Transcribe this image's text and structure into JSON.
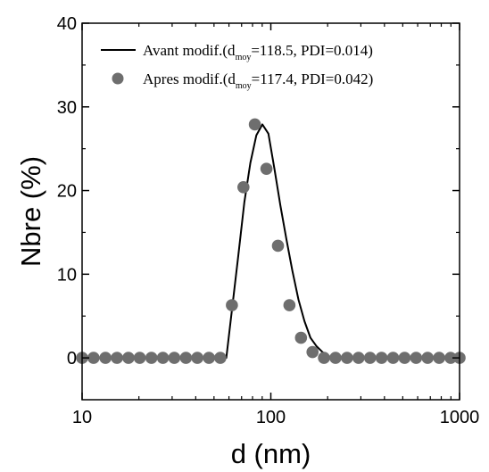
{
  "chart_data": {
    "type": "line",
    "xlabel": "d (nm)",
    "ylabel": "Nbre (%)",
    "xscale": "log",
    "xlim": [
      10,
      1000
    ],
    "ylim": [
      -5,
      40
    ],
    "xticks": [
      10,
      100,
      1000
    ],
    "xtick_labels": [
      "10",
      "100",
      "1000"
    ],
    "yticks": [
      0,
      10,
      20,
      30,
      40
    ],
    "ytick_labels": [
      "0",
      "10",
      "20",
      "30",
      "40"
    ],
    "legend_position": "top-right",
    "series": [
      {
        "name": "Avant modif.(d_moy=118.5, PDI=0.014)",
        "legend_main": "Avant modif.(d",
        "legend_sub": "moy",
        "legend_rest": "=118.5, PDI=0.014)",
        "style": "line",
        "color": "#000000",
        "x": [
          10.0,
          10.8,
          11.6,
          12.5,
          13.4,
          14.4,
          15.5,
          16.7,
          18.0,
          19.4,
          20.8,
          22.4,
          24.1,
          25.9,
          27.9,
          30.0,
          32.3,
          34.8,
          37.4,
          40.3,
          43.3,
          46.6,
          50.2,
          54.0,
          58.1,
          62.5,
          67.3,
          72.4,
          77.9,
          83.8,
          90.2,
          97.1,
          104.5,
          112.4,
          120.9,
          130.1,
          140.0,
          150.7,
          162.2,
          174.5,
          187.8,
          202.1,
          217.5,
          234.0,
          251.9,
          271.0,
          291.6,
          313.8,
          337.7,
          363.4,
          391.0,
          420.7,
          452.8,
          487.2,
          524.3,
          564.2,
          607.1,
          653.3,
          703.0,
          756.5,
          814.0,
          875.9,
          942.6,
          1000.0
        ],
        "y": [
          0,
          0,
          0,
          0,
          0,
          0,
          0,
          0,
          0,
          0,
          0,
          0,
          0,
          0,
          0,
          0,
          0,
          0,
          0,
          0,
          0,
          0,
          0,
          0,
          0,
          6.1,
          12.3,
          18.6,
          23.3,
          26.6,
          27.9,
          26.8,
          22.6,
          18.2,
          14.2,
          10.4,
          7.0,
          4.4,
          2.4,
          1.4,
          0.7,
          0.2,
          0,
          0,
          0,
          0,
          0,
          0,
          0,
          0,
          0,
          0,
          0,
          0,
          0,
          0,
          0,
          0,
          0,
          0,
          0,
          0,
          0,
          0
        ]
      },
      {
        "name": "Apres modif.(d_moy=117.4, PDI=0.042)",
        "legend_main": "Apres modif.(d",
        "legend_sub": "moy",
        "legend_rest": "=117.4, PDI=0.042)",
        "style": "markers",
        "color": "#6e6e6e",
        "x": [
          10.0,
          11.5,
          13.3,
          15.3,
          17.6,
          20.2,
          23.3,
          26.8,
          30.8,
          35.5,
          40.8,
          47.0,
          54.0,
          62.2,
          71.6,
          82.3,
          94.8,
          109.1,
          125.5,
          144.5,
          166.3,
          191.3,
          220.2,
          253.4,
          291.6,
          335.6,
          386.2,
          444.5,
          511.5,
          588.6,
          677.4,
          779.6,
          897.2,
          1000.0
        ],
        "y": [
          0,
          0,
          0,
          0,
          0,
          0,
          0,
          0,
          0,
          0,
          0,
          0,
          0,
          6.3,
          20.4,
          27.9,
          22.6,
          13.4,
          6.3,
          2.4,
          0.7,
          0,
          0,
          0,
          0,
          0,
          0,
          0,
          0,
          0,
          0,
          0,
          0,
          0
        ]
      }
    ]
  }
}
